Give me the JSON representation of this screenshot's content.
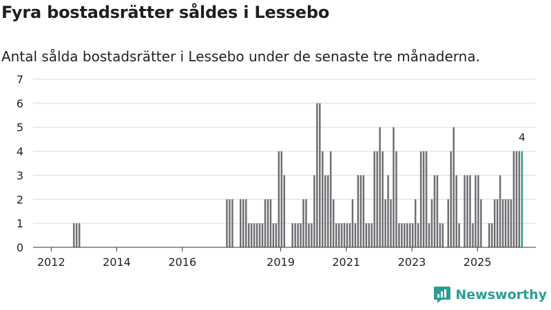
{
  "title": "Fyra bostadsrätter såldes i Lessebo",
  "subtitle": "Antal sålda bostadsrätter i Lessebo under de senaste tre månaderna.",
  "brand": {
    "name": "Newsworthy",
    "icon": "newsworthy-logo-icon"
  },
  "colors": {
    "bar": "#6e6d72",
    "highlight": "#2a9d92",
    "grid": "#d9d9d9",
    "text": "#222222"
  },
  "chart_data": {
    "type": "bar",
    "title": "Fyra bostadsrätter såldes i Lessebo",
    "subtitle": "Antal sålda bostadsrätter i Lessebo under de senaste tre månaderna.",
    "xlabel": "",
    "ylabel": "",
    "ylim": [
      0,
      7
    ],
    "y_ticks": [
      0,
      1,
      2,
      3,
      4,
      5,
      6,
      7
    ],
    "x_ticks": [
      {
        "label": "2012",
        "year": 2012
      },
      {
        "label": "2014",
        "year": 2014
      },
      {
        "label": "2016",
        "year": 2016
      },
      {
        "label": "2019",
        "year": 2019
      },
      {
        "label": "2021",
        "year": 2021
      },
      {
        "label": "2023",
        "year": 2023
      },
      {
        "label": "2025",
        "year": 2025
      }
    ],
    "start_month": "2011-07",
    "values": [
      0,
      0,
      0,
      0,
      0,
      0,
      0,
      0,
      0,
      0,
      0,
      0,
      0,
      0,
      1,
      1,
      1,
      0,
      0,
      0,
      0,
      0,
      0,
      0,
      0,
      0,
      0,
      0,
      0,
      0,
      0,
      0,
      0,
      0,
      0,
      0,
      0,
      0,
      0,
      0,
      0,
      0,
      0,
      0,
      0,
      0,
      0,
      0,
      0,
      0,
      0,
      0,
      0,
      0,
      0,
      0,
      0,
      0,
      0,
      0,
      0,
      0,
      0,
      0,
      0,
      0,
      0,
      0,
      0,
      0,
      2,
      2,
      2,
      0,
      0,
      2,
      2,
      2,
      1,
      1,
      1,
      1,
      1,
      1,
      2,
      2,
      2,
      1,
      1,
      4,
      4,
      3,
      0,
      0,
      1,
      1,
      1,
      1,
      2,
      2,
      1,
      1,
      3,
      6,
      6,
      4,
      3,
      3,
      4,
      2,
      1,
      1,
      1,
      1,
      1,
      1,
      2,
      1,
      3,
      3,
      3,
      1,
      1,
      1,
      4,
      4,
      5,
      4,
      2,
      3,
      2,
      5,
      4,
      1,
      1,
      1,
      1,
      1,
      1,
      2,
      1,
      4,
      4,
      4,
      1,
      2,
      3,
      3,
      1,
      1,
      0,
      2,
      4,
      5,
      3,
      1,
      0,
      3,
      3,
      3,
      1,
      3,
      3,
      2,
      0,
      0,
      1,
      1,
      2,
      2,
      3,
      2,
      2,
      2,
      2,
      4,
      4,
      4,
      4
    ],
    "highlight_last": true,
    "last_value_label": "4"
  }
}
